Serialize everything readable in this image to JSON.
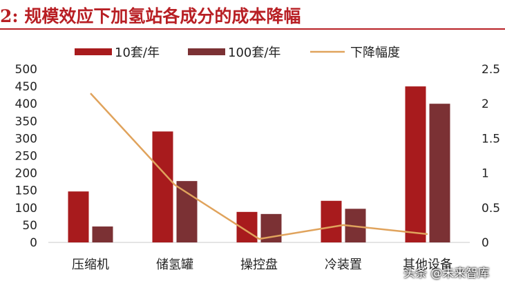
{
  "title": "2: 规模效应下加氢站各成分的成本降幅",
  "watermark": "头条 @未来智库",
  "colors": {
    "title": "#b81f24",
    "series10": "#a81b1d",
    "series100": "#7b3134",
    "line": "#e0a35c"
  },
  "chart_data": {
    "type": "bar",
    "categories": [
      "压缩机",
      "储氢罐",
      "操控盘",
      "冷装置",
      "其他设备"
    ],
    "series": [
      {
        "name": "10套/年",
        "type": "bar",
        "axis": "left",
        "values": [
          147,
          320,
          88,
          120,
          450
        ]
      },
      {
        "name": "100套/年",
        "type": "bar",
        "axis": "left",
        "values": [
          46,
          177,
          82,
          97,
          400
        ]
      },
      {
        "name": "下降幅度",
        "type": "line",
        "axis": "right",
        "values": [
          2.15,
          0.83,
          0.05,
          0.25,
          0.12
        ]
      }
    ],
    "ylim": [
      0,
      500
    ],
    "yticks": [
      "0",
      "50",
      "100",
      "150",
      "200",
      "250",
      "300",
      "350",
      "400",
      "450",
      "500"
    ],
    "y2lim": [
      0,
      2.5
    ],
    "y2ticks": [
      "0",
      "0.5",
      "1",
      "1.5",
      "2",
      "2.5"
    ],
    "legend_position": "top"
  }
}
